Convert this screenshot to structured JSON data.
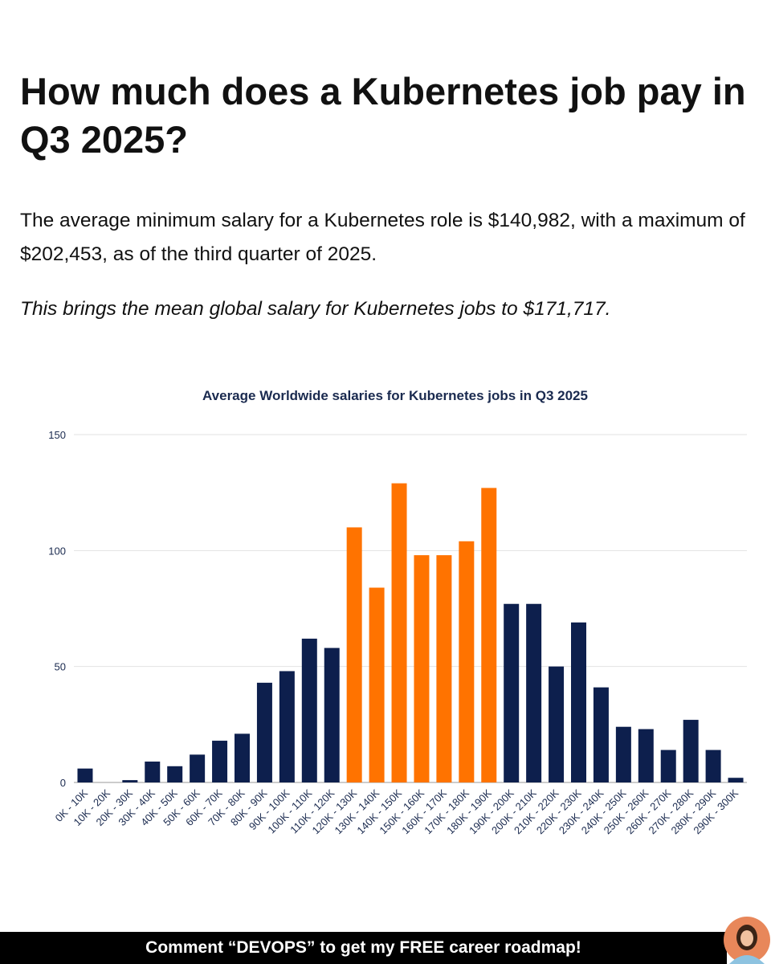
{
  "header": {
    "title": "How much does a Kubernetes job pay in Q3 2025?"
  },
  "paragraphs": [
    "The average minimum salary for a Kubernetes role is $140,982, with a maximum of $202,453, as of the third quarter of 2025.",
    "This brings the mean global salary for Kubernetes jobs to $171,717."
  ],
  "chart_data": {
    "type": "bar",
    "title": "Average Worldwide salaries for Kubernetes jobs in Q3 2025",
    "categories": [
      "0K - 10K",
      "10K - 20K",
      "20K - 30K",
      "30K - 40K",
      "40K - 50K",
      "50K - 60K",
      "60K - 70K",
      "70K - 80K",
      "80K - 90K",
      "90K - 100K",
      "100K - 110K",
      "110K - 120K",
      "120K - 130K",
      "130K - 140K",
      "140K - 150K",
      "150K - 160K",
      "160K - 170K",
      "170K - 180K",
      "180K - 190K",
      "190K - 200K",
      "200K - 210K",
      "210K - 220K",
      "220K - 230K",
      "230K - 240K",
      "240K - 250K",
      "250K - 260K",
      "260K - 270K",
      "270K - 280K",
      "280K - 290K",
      "290K - 300K"
    ],
    "values": [
      6,
      0,
      1,
      9,
      7,
      12,
      18,
      21,
      43,
      48,
      62,
      58,
      110,
      84,
      129,
      98,
      98,
      104,
      127,
      77,
      77,
      50,
      69,
      41,
      24,
      23,
      14,
      27,
      14,
      2
    ],
    "colors": [
      "#0d1f4d",
      "#0d1f4d",
      "#0d1f4d",
      "#0d1f4d",
      "#0d1f4d",
      "#0d1f4d",
      "#0d1f4d",
      "#0d1f4d",
      "#0d1f4d",
      "#0d1f4d",
      "#0d1f4d",
      "#0d1f4d",
      "#ff7300",
      "#ff7300",
      "#ff7300",
      "#ff7300",
      "#ff7300",
      "#ff7300",
      "#ff7300",
      "#0d1f4d",
      "#0d1f4d",
      "#0d1f4d",
      "#0d1f4d",
      "#0d1f4d",
      "#0d1f4d",
      "#0d1f4d",
      "#0d1f4d",
      "#0d1f4d",
      "#0d1f4d",
      "#0d1f4d"
    ],
    "ylim": [
      0,
      150
    ],
    "yticks": [
      0,
      50,
      100,
      150
    ],
    "grid": true
  },
  "footer": {
    "text": "Comment “DEVOPS” to get my FREE career roadmap!"
  }
}
